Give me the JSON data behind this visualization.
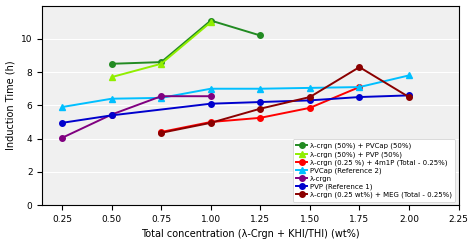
{
  "series": [
    {
      "label": "λ-crgn (50%) + PVCap (50%)",
      "color": "#228B22",
      "marker": "o",
      "markersize": 4,
      "x": [
        0.5,
        0.75,
        1.0,
        1.25
      ],
      "y": [
        8.5,
        8.6,
        11.1,
        10.2
      ]
    },
    {
      "label": "λ-crgn (50%) + PVP (50%)",
      "color": "#90EE00",
      "marker": "^",
      "markersize": 4,
      "x": [
        0.5,
        0.75,
        1.0
      ],
      "y": [
        7.7,
        8.5,
        11.0
      ]
    },
    {
      "label": "λ-crgn (0.25 %) + 4m1P (Total - 0.25%)",
      "color": "#FF0000",
      "marker": "o",
      "markersize": 4,
      "x": [
        0.75,
        1.0,
        1.25,
        1.5,
        1.75
      ],
      "y": [
        4.4,
        5.0,
        5.25,
        5.85,
        7.1
      ]
    },
    {
      "label": "PVCap (Reference 2)",
      "color": "#00BFFF",
      "marker": "^",
      "markersize": 4,
      "x": [
        0.25,
        0.5,
        0.75,
        1.0,
        1.25,
        1.5,
        1.75,
        2.0
      ],
      "y": [
        5.9,
        6.4,
        6.45,
        7.0,
        7.0,
        7.05,
        7.1,
        7.8
      ]
    },
    {
      "label": "λ-crgn",
      "color": "#800080",
      "marker": "o",
      "markersize": 4,
      "x": [
        0.25,
        0.5,
        0.75,
        1.0
      ],
      "y": [
        4.05,
        5.45,
        6.55,
        6.55
      ]
    },
    {
      "label": "PVP (Reference 1)",
      "color": "#0000CD",
      "marker": "o",
      "markersize": 4,
      "x": [
        0.25,
        0.5,
        1.0,
        1.25,
        1.5,
        1.75,
        2.0
      ],
      "y": [
        4.95,
        5.4,
        6.1,
        6.2,
        6.3,
        6.5,
        6.6
      ]
    },
    {
      "label": "λ-crgn (0.25 wt%) + MEG (Total - 0.25%)",
      "color": "#8B0000",
      "marker": "o",
      "markersize": 4,
      "x": [
        0.75,
        1.0,
        1.25,
        1.5,
        1.75,
        2.0
      ],
      "y": [
        4.35,
        4.95,
        5.8,
        6.5,
        8.3,
        6.5
      ]
    }
  ],
  "xlabel": "Total concentration (λ-Crgn + KHI/THI) (wt%)",
  "ylabel": "Induction Time (h)",
  "xlim": [
    0.15,
    2.25
  ],
  "ylim": [
    0,
    12
  ],
  "xticks": [
    0.25,
    0.5,
    0.75,
    1.0,
    1.25,
    1.5,
    1.75,
    2.0,
    2.25
  ],
  "yticks": [
    0,
    2,
    4,
    6,
    8,
    10
  ],
  "background_color": "#f0f0f0",
  "linewidth": 1.4,
  "figsize": [
    4.74,
    2.45
  ],
  "dpi": 100
}
